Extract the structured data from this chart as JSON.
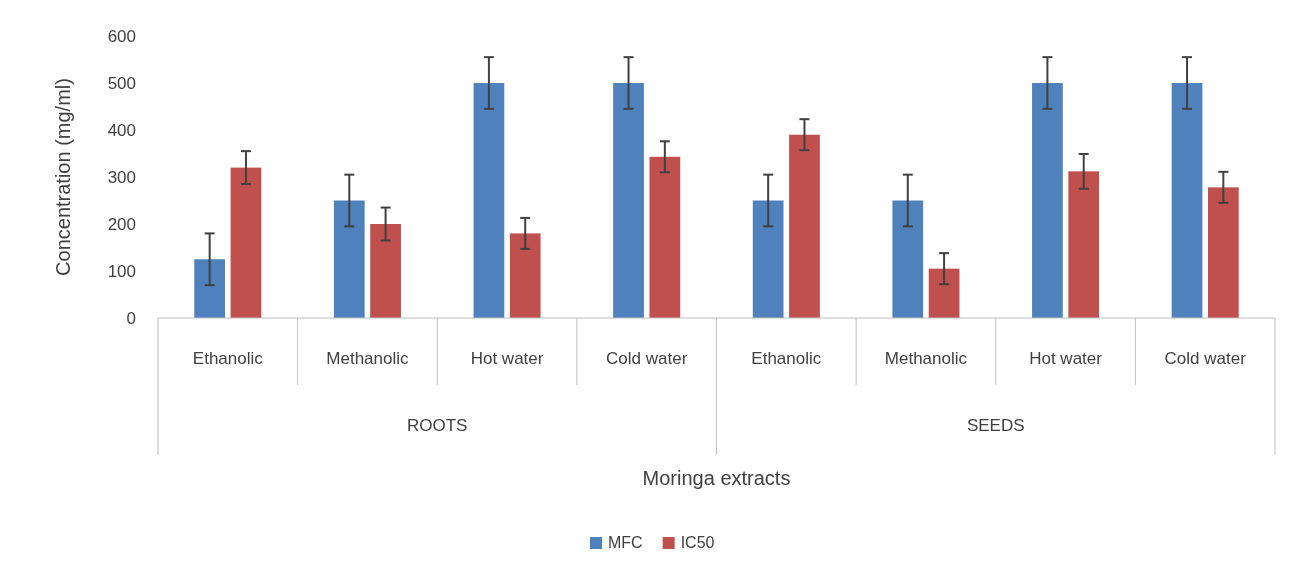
{
  "chart_data": {
    "type": "bar",
    "xlabel": "Moringa extracts",
    "ylabel": "Concentration (mg/ml)",
    "categories": [
      "Ethanolic",
      "Methanolic",
      "Hot water",
      "Cold water",
      "Ethanolic",
      "Methanolic",
      "Hot water",
      "Cold water"
    ],
    "annotations": [
      "ROOTS",
      "SEEDS"
    ],
    "series": [
      {
        "name": "MFC",
        "color": "#4f81bd",
        "values": [
          125,
          250,
          500,
          500,
          250,
          250,
          500,
          500
        ],
        "errors": [
          55,
          55,
          55,
          55,
          55,
          55,
          55,
          55
        ]
      },
      {
        "name": "IC50",
        "color": "#c0504d",
        "values": [
          320,
          200,
          180,
          343,
          390,
          105,
          312,
          278
        ],
        "errors": [
          35,
          35,
          33,
          33,
          33,
          33,
          37,
          33
        ]
      }
    ],
    "ylim": [
      0,
      600
    ],
    "yticks": [
      0,
      100,
      200,
      300,
      400,
      500,
      600
    ],
    "grid": false,
    "legend": "bottom"
  }
}
